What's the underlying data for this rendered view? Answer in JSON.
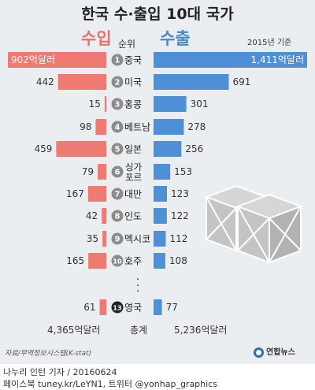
{
  "title": "한국 수·출입 10대 국가",
  "labels": {
    "imports": "수입",
    "exports": "수출",
    "rank": "순위",
    "basis": "2015년 기준",
    "ellipsis": "·\n·\n·",
    "total_label": "총계"
  },
  "colors": {
    "imports": "#ef7a72",
    "exports": "#4f8fd6",
    "badge": "#8c8c8c",
    "badge_top": "#222222"
  },
  "chart_data": {
    "type": "bar",
    "unit": "억달러",
    "categories": [
      {
        "rank": "1",
        "country": "중국"
      },
      {
        "rank": "2",
        "country": "미국"
      },
      {
        "rank": "3",
        "country": "홍콩"
      },
      {
        "rank": "4",
        "country": "베트남"
      },
      {
        "rank": "5",
        "country": "일본"
      },
      {
        "rank": "6",
        "country": "싱가\n포르"
      },
      {
        "rank": "7",
        "country": "대만"
      },
      {
        "rank": "8",
        "country": "인도"
      },
      {
        "rank": "9",
        "country": "멕시코"
      },
      {
        "rank": "10",
        "country": "호주"
      },
      {
        "rank": "13",
        "country": "영국"
      }
    ],
    "series": [
      {
        "name": "수입",
        "values": [
          902,
          442,
          15,
          98,
          459,
          79,
          167,
          42,
          35,
          165,
          61
        ],
        "labels": [
          "902억달러",
          "442",
          "15",
          "98",
          "459",
          "79",
          "167",
          "42",
          "35",
          "165",
          "61"
        ]
      },
      {
        "name": "수출",
        "values": [
          1411,
          691,
          301,
          278,
          256,
          153,
          123,
          122,
          112,
          108,
          77
        ],
        "labels": [
          "1,411억달러",
          "691",
          "301",
          "278",
          "256",
          "153",
          "123",
          "122",
          "112",
          "108",
          "77"
        ]
      }
    ]
  },
  "totals": {
    "imports": "4,365억달러",
    "exports": "5,236억달러"
  },
  "source": "자료/무역정보시스템(K-stat)",
  "brand": "연합뉴스",
  "credit": "나누리 인턴 기자 / 20160624",
  "social": "페이스북 tuney.kr/LeYN1, 트위터 @yonhap_graphics"
}
